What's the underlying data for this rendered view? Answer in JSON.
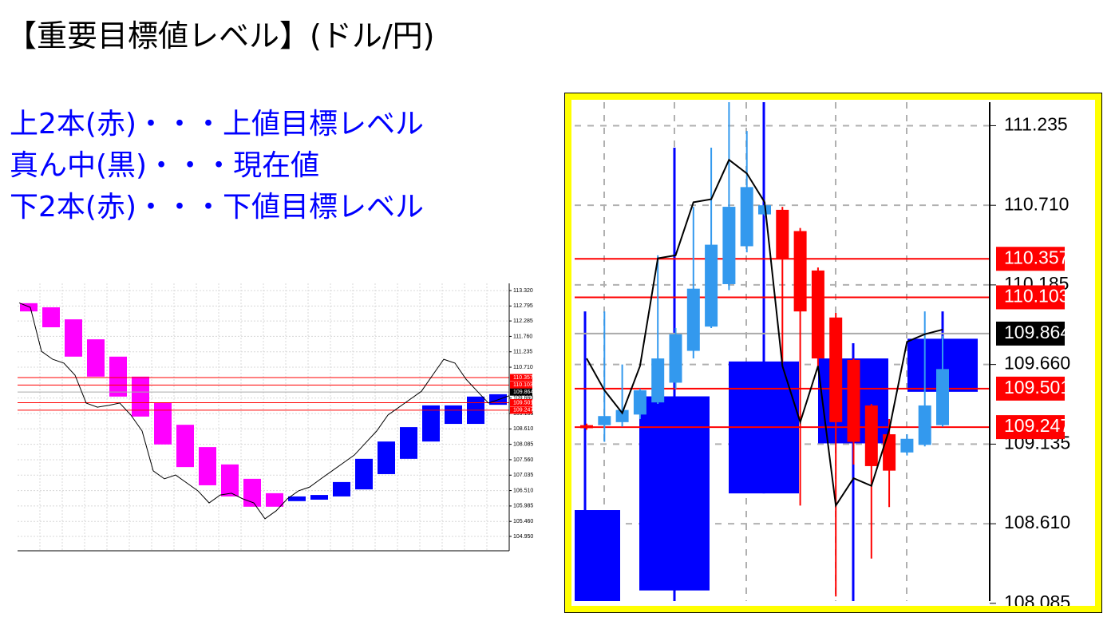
{
  "title": "【重要目標値レベル】(ドル/円)",
  "notes": [
    "上2本(赤)・・・上値目標レベル",
    "真ん中(黒)・・・現在値",
    "下2本(赤)・・・下値目標レベル"
  ],
  "chart_data": [
    {
      "type": "candlestick",
      "grid": true,
      "ylim": [
        104.46,
        113.565
      ],
      "yticks": [
        {
          "value": 113.32,
          "label": "113.320"
        },
        112.795,
        112.285,
        {
          "value": 111.76,
          "label": "111.760"
        },
        111.235,
        {
          "value": 110.71,
          "label": "110.710"
        },
        {
          "value": 109.66,
          "label": "109.660"
        },
        109.135,
        {
          "value": 108.61,
          "label": "108.610"
        },
        108.085,
        {
          "value": 107.56,
          "label": "107.560"
        },
        107.035,
        {
          "value": 106.51,
          "label": "106.510"
        },
        105.985,
        {
          "value": 105.46,
          "label": "105.460"
        },
        {
          "value": 104.95,
          "label": "104.950"
        }
      ],
      "levels": [
        {
          "value": 110.357,
          "color": "#ff0000",
          "line_color": "#ff0000"
        },
        {
          "value": 110.103,
          "color": "#ff0000",
          "line_color": "#ff0000"
        },
        {
          "value": 109.864,
          "color": "#000000",
          "line_color": "#aaaaaa"
        },
        {
          "value": 109.501,
          "color": "#ff0000",
          "line_color": "#ff0000"
        },
        {
          "value": 109.247,
          "color": "#ff0000",
          "line_color": "#ff0000"
        }
      ],
      "boxes": [
        {
          "open": 112.89,
          "close": 112.61,
          "color": "#ff00ff"
        },
        {
          "open": 112.75,
          "close": 112.07,
          "color": "#ff00ff"
        },
        {
          "open": 112.34,
          "close": 111.07,
          "color": "#ff00ff"
        },
        {
          "open": 111.66,
          "close": 110.39,
          "color": "#ff00ff"
        },
        {
          "open": 111.07,
          "close": 109.71,
          "color": "#ff00ff"
        },
        {
          "open": 110.39,
          "close": 109.03,
          "color": "#ff00ff"
        },
        {
          "open": 109.49,
          "close": 108.08,
          "color": "#ff00ff"
        },
        {
          "open": 108.75,
          "close": 107.31,
          "color": "#ff00ff"
        },
        {
          "open": 107.99,
          "close": 106.69,
          "color": "#ff00ff"
        },
        {
          "open": 107.4,
          "close": 106.31,
          "color": "#ff00ff"
        },
        {
          "open": 106.91,
          "close": 105.96,
          "color": "#ff00ff"
        },
        {
          "open": 106.42,
          "close": 105.96,
          "color": "#ff00ff"
        },
        {
          "open": 106.15,
          "close": 106.31,
          "color": "#0000ff"
        },
        {
          "open": 106.2,
          "close": 106.36,
          "color": "#0000ff"
        },
        {
          "open": 106.31,
          "close": 106.8,
          "color": "#0000ff"
        },
        {
          "open": 106.55,
          "close": 107.59,
          "color": "#0000ff"
        },
        {
          "open": 107.07,
          "close": 108.18,
          "color": "#0000ff"
        },
        {
          "open": 107.59,
          "close": 108.67,
          "color": "#0000ff"
        },
        {
          "open": 108.18,
          "close": 109.41,
          "color": "#0000ff"
        },
        {
          "open": 108.78,
          "close": 109.41,
          "color": "#0000ff"
        },
        {
          "open": 108.78,
          "close": 109.71,
          "color": "#0000ff"
        },
        {
          "open": 109.43,
          "close": 109.79,
          "color": "#0000ff"
        }
      ],
      "candles": [],
      "line": {
        "color": "#000000",
        "values": [
          112.9,
          112.75,
          111.25,
          110.98,
          110.85,
          110.44,
          109.49,
          109.35,
          109.41,
          109.49,
          109.08,
          108.54,
          107.18,
          106.91,
          107.04,
          106.77,
          106.5,
          106.09,
          106.36,
          106.42,
          106.23,
          106.09,
          105.55,
          105.82,
          106.23,
          106.5,
          106.63,
          106.91,
          107.18,
          107.45,
          107.72,
          108.13,
          108.54,
          109.08,
          109.35,
          109.62,
          109.89,
          110.44,
          110.98,
          110.85,
          110.3,
          109.89,
          109.49,
          109.62,
          109.76
        ]
      }
    },
    {
      "type": "candlestick",
      "grid": true,
      "ylim": [
        108.1,
        111.39
      ],
      "yticks": [
        111.235,
        {
          "value": 110.71,
          "label": "110.710"
        },
        110.185,
        {
          "value": 109.66,
          "label": "109.660"
        },
        109.135,
        {
          "value": 108.61,
          "label": "108.610"
        },
        108.085
      ],
      "levels": [
        {
          "value": 110.357,
          "color": "#ff0000",
          "line_color": "#ff0000"
        },
        {
          "value": 110.103,
          "color": "#ff0000",
          "line_color": "#ff0000"
        },
        {
          "value": 109.864,
          "color": "#000000",
          "line_color": "#aaaaaa"
        },
        {
          "value": 109.501,
          "color": "#ff0000",
          "line_color": "#ff0000"
        },
        {
          "value": 109.247,
          "color": "#ff0000",
          "line_color": "#ff0000"
        }
      ],
      "boxes": [
        {
          "open": 108.1,
          "close": 108.7,
          "high": 110.01,
          "low": 108.1,
          "color": "#0000ff"
        },
        {
          "open": 108.17,
          "close": 109.45,
          "high": 111.09,
          "low": 108.1,
          "color": "#0000ff"
        },
        {
          "open": 108.81,
          "close": 109.68,
          "high": 111.39,
          "low": 108.81,
          "color": "#0000ff"
        },
        {
          "open": 109.14,
          "close": 109.7,
          "high": 109.8,
          "low": 108.1,
          "color": "#0000ff"
        },
        {
          "open": 109.48,
          "close": 109.83,
          "high": 110.01,
          "low": 109.38,
          "color": "#0000ff"
        }
      ],
      "candles": [
        {
          "open": 109.26,
          "close": 109.24,
          "high": 109.27,
          "low": 109.23,
          "color": "#ff0000"
        },
        {
          "open": 109.26,
          "close": 109.32,
          "high": 110.01,
          "low": 109.15,
          "color": "#3399ee"
        },
        {
          "open": 109.28,
          "close": 109.36,
          "high": 109.66,
          "low": 109.25,
          "color": "#3399ee"
        },
        {
          "open": 109.33,
          "close": 109.49,
          "high": 109.5,
          "low": 109.3,
          "color": "#3399ee"
        },
        {
          "open": 109.41,
          "close": 109.7,
          "high": 110.38,
          "low": 109.4,
          "color": "#3399ee"
        },
        {
          "open": 109.54,
          "close": 109.86,
          "high": 109.9,
          "low": 109.5,
          "color": "#3399ee"
        },
        {
          "open": 109.75,
          "close": 110.16,
          "high": 110.7,
          "low": 109.7,
          "color": "#3399ee"
        },
        {
          "open": 109.91,
          "close": 110.45,
          "high": 111.09,
          "low": 109.9,
          "color": "#3399ee"
        },
        {
          "open": 110.19,
          "close": 110.7,
          "high": 111.39,
          "low": 110.15,
          "color": "#3399ee"
        },
        {
          "open": 110.44,
          "close": 110.83,
          "high": 111.2,
          "low": 110.4,
          "color": "#3399ee"
        },
        {
          "open": 110.65,
          "close": 110.71,
          "high": 110.72,
          "low": 110.64,
          "color": "#3399ee"
        },
        {
          "open": 110.68,
          "close": 110.36,
          "high": 110.7,
          "low": 109.67,
          "color": "#ff0000"
        },
        {
          "open": 110.54,
          "close": 110.01,
          "high": 110.56,
          "low": 108.73,
          "color": "#ff0000"
        },
        {
          "open": 110.28,
          "close": 109.7,
          "high": 110.3,
          "low": 109.65,
          "color": "#ff0000"
        },
        {
          "open": 109.97,
          "close": 109.28,
          "high": 110.0,
          "low": 108.13,
          "color": "#ff0000"
        },
        {
          "open": 109.69,
          "close": 109.15,
          "high": 109.7,
          "low": 109.0,
          "color": "#ff0000"
        },
        {
          "open": 109.39,
          "close": 108.99,
          "high": 109.4,
          "low": 108.38,
          "color": "#ff0000"
        },
        {
          "open": 109.2,
          "close": 108.96,
          "high": 109.3,
          "low": 108.72,
          "color": "#ff0000"
        },
        {
          "open": 109.08,
          "close": 109.17,
          "high": 109.2,
          "low": 109.06,
          "color": "#3399ee"
        },
        {
          "open": 109.13,
          "close": 109.39,
          "high": 110.01,
          "low": 109.12,
          "color": "#3399ee"
        },
        {
          "open": 109.26,
          "close": 109.63,
          "high": 109.85,
          "low": 109.25,
          "color": "#3399ee"
        }
      ],
      "line": {
        "color": "#000000",
        "values": [
          109.7,
          109.49,
          109.34,
          109.65,
          110.36,
          110.38,
          110.73,
          110.75,
          111.01,
          110.92,
          110.73,
          109.65,
          109.28,
          109.65,
          108.73,
          108.91,
          108.86,
          109.23,
          109.81,
          109.86,
          109.89
        ]
      }
    }
  ]
}
